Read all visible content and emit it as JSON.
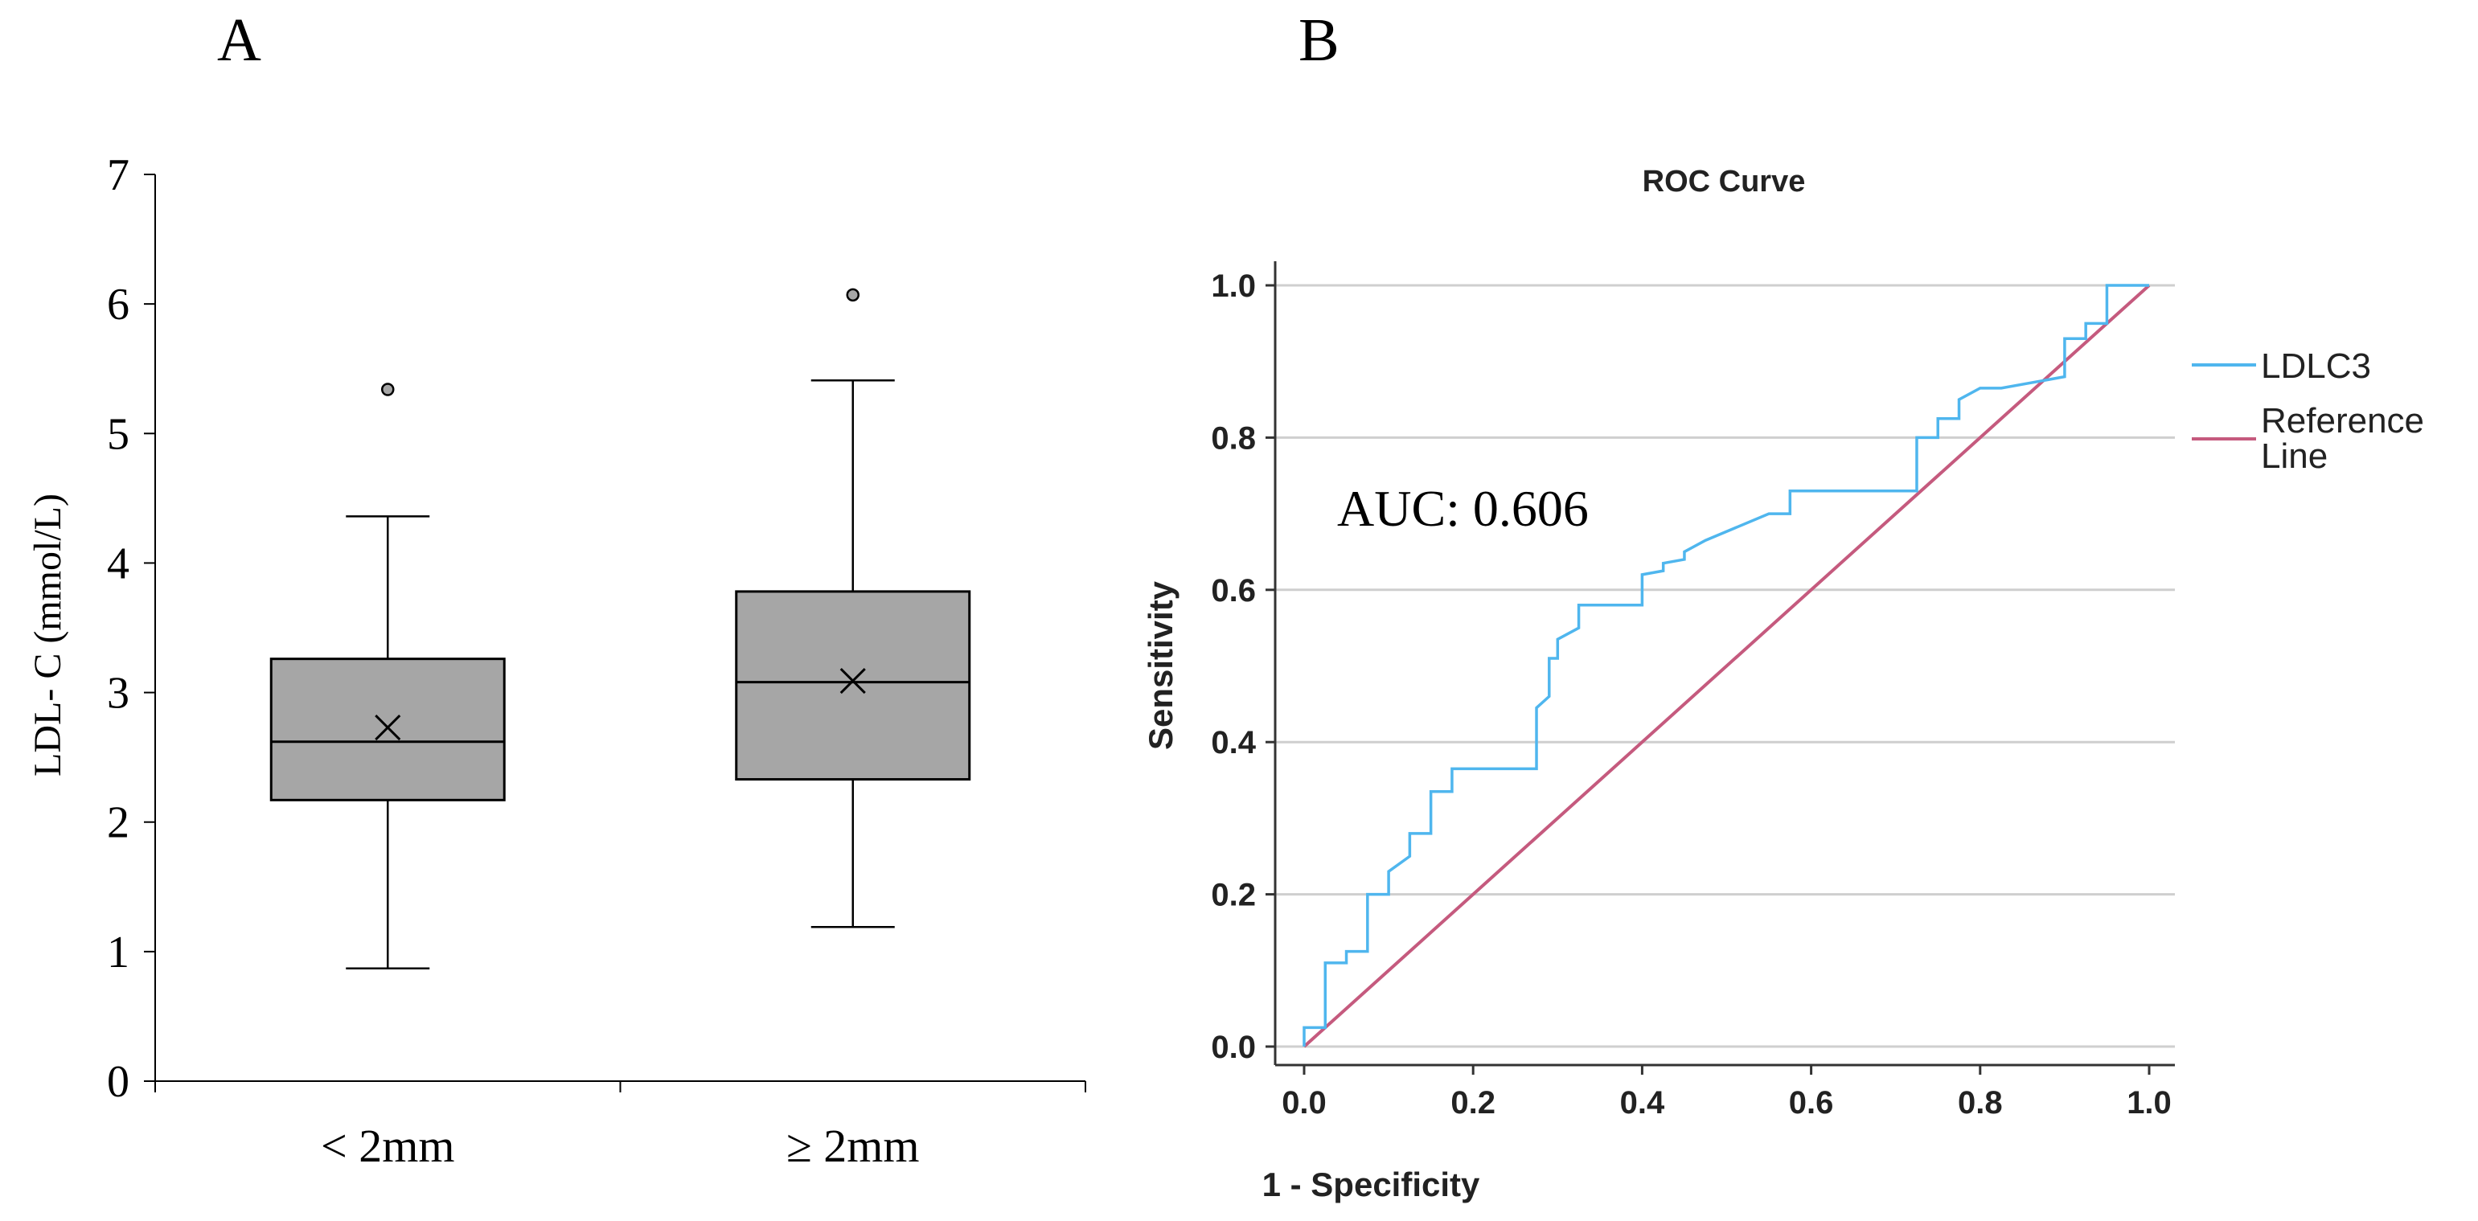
{
  "panels": {
    "a_label": "A",
    "b_label": "B"
  },
  "chart_data": [
    {
      "type": "box",
      "title": "",
      "ylabel": "LDL- C (mmol/L)",
      "xlabel": "",
      "ylim": [
        0,
        7
      ],
      "yticks": [
        "0",
        "1",
        "2",
        "3",
        "4",
        "5",
        "6",
        "7"
      ],
      "categories": [
        "< 2mm",
        "≥ 2mm"
      ],
      "boxes": [
        {
          "name": "< 2mm",
          "whisker_low": 0.87,
          "q1": 2.17,
          "median": 2.62,
          "mean": 2.73,
          "q3": 3.26,
          "whisker_high": 4.36,
          "outliers": [
            5.34
          ]
        },
        {
          "name": "≥ 2mm",
          "whisker_low": 1.19,
          "q1": 2.33,
          "median": 3.08,
          "mean": 3.09,
          "q3": 3.78,
          "whisker_high": 5.41,
          "outliers": [
            6.07
          ]
        }
      ],
      "box_fill": "#a6a6a6",
      "line_color": "#000000"
    },
    {
      "type": "line",
      "title": "ROC Curve",
      "xlabel": "1 - Specificity",
      "ylabel": "Sensitivity",
      "xlim": [
        0,
        1
      ],
      "ylim": [
        0,
        1
      ],
      "xticks": [
        "0.0",
        "0.2",
        "0.4",
        "0.6",
        "0.8",
        "1.0"
      ],
      "yticks": [
        "0.0",
        "0.2",
        "0.4",
        "0.6",
        "0.8",
        "1.0"
      ],
      "grid": "horizontal",
      "annotation": "AUC: 0.606",
      "legend_position": "right",
      "series": [
        {
          "name": "LDLC3",
          "color": "#4fb6ee",
          "x": [
            0,
            0,
            0.025,
            0.025,
            0.05,
            0.05,
            0.075,
            0.075,
            0.1,
            0.1,
            0.125,
            0.125,
            0.15,
            0.15,
            0.175,
            0.175,
            0.275,
            0.275,
            0.29,
            0.29,
            0.3,
            0.3,
            0.325,
            0.325,
            0.4,
            0.4,
            0.425,
            0.425,
            0.45,
            0.45,
            0.475,
            0.55,
            0.575,
            0.575,
            0.725,
            0.725,
            0.75,
            0.75,
            0.775,
            0.775,
            0.8,
            0.825,
            0.9,
            0.9,
            0.925,
            0.925,
            0.95,
            0.95,
            1
          ],
          "y": [
            0,
            0.025,
            0.025,
            0.11,
            0.11,
            0.125,
            0.125,
            0.2,
            0.2,
            0.23,
            0.25,
            0.28,
            0.28,
            0.335,
            0.335,
            0.365,
            0.365,
            0.445,
            0.46,
            0.51,
            0.51,
            0.535,
            0.55,
            0.58,
            0.58,
            0.62,
            0.625,
            0.635,
            0.64,
            0.65,
            0.665,
            0.7,
            0.7,
            0.73,
            0.73,
            0.8,
            0.8,
            0.825,
            0.825,
            0.85,
            0.865,
            0.865,
            0.88,
            0.93,
            0.93,
            0.95,
            0.95,
            1,
            1
          ]
        },
        {
          "name": "Reference Line",
          "legend_lines": [
            "Reference",
            "Line"
          ],
          "color": "#c55a7e",
          "x": [
            0,
            1
          ],
          "y": [
            0,
            1
          ]
        }
      ]
    }
  ]
}
